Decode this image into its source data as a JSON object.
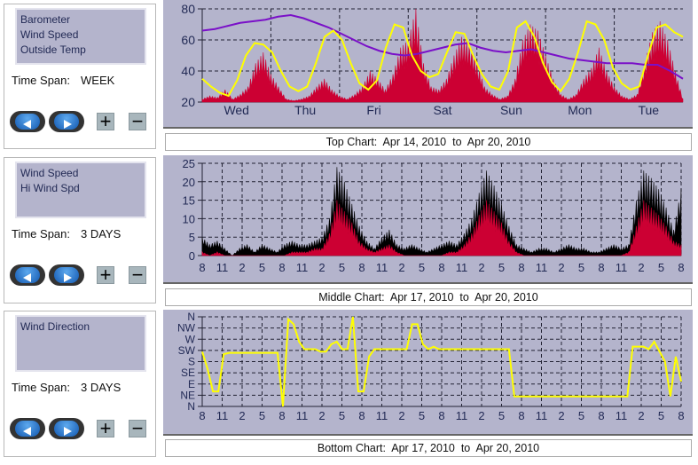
{
  "panels": [
    {
      "series_list": [
        "Barometer",
        "Wind Speed",
        "Outside Temp"
      ],
      "time_span_label": "Time Span:",
      "time_span": "WEEK",
      "caption": {
        "name": "Top Chart:",
        "from": "Apr 14, 2010",
        "to_word": "to",
        "to": "Apr 20, 2010"
      }
    },
    {
      "series_list": [
        "Wind Speed",
        "Hi Wind Spd"
      ],
      "time_span_label": "Time Span:",
      "time_span": "3 DAYS",
      "caption": {
        "name": "Middle Chart:",
        "from": "Apr 17, 2010",
        "to_word": "to",
        "to": "Apr 20, 2010"
      }
    },
    {
      "series_list": [
        "Wind Direction"
      ],
      "time_span_label": "Time Span:",
      "time_span": "3 DAYS",
      "caption": {
        "name": "Bottom Chart:",
        "from": "Apr 17, 2010",
        "to_word": "to",
        "to": "Apr 20, 2010"
      }
    }
  ],
  "buttons": {
    "back_icon": "left-arrow",
    "forward_icon": "right-arrow",
    "zoom_in": "+",
    "zoom_out": "−"
  },
  "chart_data": [
    {
      "type": "line",
      "title": "Top Chart",
      "ylim": [
        20,
        80
      ],
      "yticks": [
        "20",
        "40",
        "60",
        "80"
      ],
      "xlim": [
        0,
        7
      ],
      "xticks": [
        "Wed",
        "Thu",
        "Fri",
        "Sat",
        "Sun",
        "Mon",
        "Tue"
      ],
      "series": [
        {
          "name": "Wind Speed",
          "color": "#cc0033",
          "kind": "area",
          "values": [
            22,
            24,
            23,
            28,
            22,
            25,
            30,
            45,
            52,
            38,
            30,
            22,
            21,
            22,
            24,
            30,
            35,
            28,
            24,
            22,
            25,
            30,
            40,
            35,
            28,
            38,
            55,
            60,
            80,
            45,
            30,
            28,
            35,
            50,
            62,
            58,
            45,
            30,
            25,
            22,
            24,
            35,
            60,
            70,
            66,
            50,
            35,
            25,
            22,
            25,
            35,
            42,
            55,
            40,
            30,
            24,
            22,
            25,
            45,
            65,
            72,
            60,
            40,
            22
          ]
        },
        {
          "name": "Barometer",
          "color": "#7a10c8",
          "kind": "line",
          "values": [
            66,
            67,
            69,
            71,
            72,
            73,
            75,
            76,
            74,
            71,
            68,
            64,
            60,
            56,
            53,
            51,
            50,
            51,
            53,
            55,
            57,
            58,
            55,
            53,
            52,
            53,
            54,
            52,
            50,
            48,
            47,
            46,
            45,
            45,
            45,
            44,
            44,
            40,
            35
          ]
        },
        {
          "name": "Outside Temp",
          "color": "#ffff00",
          "kind": "line",
          "values": [
            35,
            30,
            26,
            24,
            34,
            50,
            58,
            57,
            52,
            40,
            30,
            27,
            30,
            45,
            62,
            66,
            60,
            45,
            32,
            28,
            34,
            55,
            70,
            68,
            50,
            40,
            36,
            38,
            52,
            65,
            64,
            50,
            38,
            30,
            28,
            40,
            68,
            72,
            62,
            45,
            33,
            27,
            35,
            52,
            72,
            70,
            60,
            42,
            32,
            28,
            30,
            50,
            68,
            70,
            65,
            62
          ]
        }
      ]
    },
    {
      "type": "line",
      "title": "Middle Chart",
      "ylim": [
        0,
        25
      ],
      "yticks": [
        "0",
        "5",
        "10",
        "15",
        "20",
        "25"
      ],
      "xlim": [
        0,
        22
      ],
      "xticks": [
        "8",
        "11",
        "2",
        "5",
        "8",
        "11",
        "2",
        "5",
        "8",
        "11",
        "2",
        "5",
        "8",
        "11",
        "2",
        "5",
        "8",
        "11",
        "2",
        "5",
        "8",
        "11",
        "2",
        "5",
        "8"
      ],
      "series": [
        {
          "name": "Hi Wind Spd",
          "color": "#000000",
          "kind": "area",
          "values": [
            5,
            3,
            4,
            2,
            0,
            2,
            3,
            1,
            3,
            2,
            1,
            3,
            4,
            3,
            3,
            4,
            5,
            10,
            24,
            20,
            14,
            8,
            4,
            2,
            5,
            7,
            3,
            2,
            3,
            2,
            1,
            2,
            3,
            4,
            3,
            6,
            10,
            17,
            23,
            19,
            14,
            8,
            3,
            2,
            1,
            2,
            2,
            1,
            2,
            3,
            2,
            2,
            1,
            1,
            2,
            3,
            2,
            3,
            15,
            23,
            21,
            18,
            13,
            7,
            18
          ]
        },
        {
          "name": "Wind Speed",
          "color": "#cc0033",
          "kind": "area",
          "values": [
            1,
            0,
            1,
            0,
            0,
            0,
            0,
            0,
            0,
            0,
            0,
            0,
            1,
            1,
            1,
            2,
            2,
            6,
            15,
            12,
            9,
            4,
            2,
            1,
            2,
            3,
            1,
            0,
            0,
            0,
            0,
            0,
            0,
            1,
            1,
            3,
            6,
            11,
            15,
            12,
            9,
            4,
            1,
            0,
            0,
            0,
            0,
            0,
            0,
            0,
            0,
            0,
            0,
            0,
            0,
            0,
            0,
            1,
            8,
            15,
            13,
            11,
            8,
            4,
            3
          ]
        }
      ]
    },
    {
      "type": "line",
      "title": "Bottom Chart",
      "ylim": [
        0,
        360
      ],
      "yticks": [
        "N",
        "NE",
        "E",
        "SE",
        "S",
        "SW",
        "W",
        "NW",
        "N"
      ],
      "xlim": [
        0,
        22
      ],
      "xticks": [
        "8",
        "11",
        "2",
        "5",
        "8",
        "11",
        "2",
        "5",
        "8",
        "11",
        "2",
        "5",
        "8",
        "11",
        "2",
        "5",
        "8",
        "11",
        "2",
        "5",
        "8",
        "11",
        "2",
        "5",
        "8"
      ],
      "series": [
        {
          "name": "Wind Direction",
          "color": "#ffff00",
          "kind": "line",
          "values": [
            220,
            150,
            60,
            60,
            210,
            215,
            215,
            215,
            215,
            215,
            215,
            215,
            215,
            215,
            215,
            0,
            350,
            330,
            260,
            230,
            230,
            230,
            220,
            220,
            250,
            260,
            230,
            230,
            360,
            60,
            60,
            200,
            230,
            230,
            230,
            230,
            230,
            230,
            230,
            330,
            330,
            250,
            230,
            240,
            230,
            230,
            230,
            230,
            230,
            230,
            230,
            230,
            230,
            230,
            230,
            230,
            230,
            230,
            40,
            40,
            40,
            40,
            40,
            40,
            40,
            40,
            40,
            40,
            40,
            40,
            40,
            40,
            40,
            40,
            40,
            40,
            40,
            40,
            40,
            40,
            240,
            240,
            240,
            230,
            260,
            220,
            180,
            40,
            200,
            100
          ]
        }
      ]
    }
  ]
}
